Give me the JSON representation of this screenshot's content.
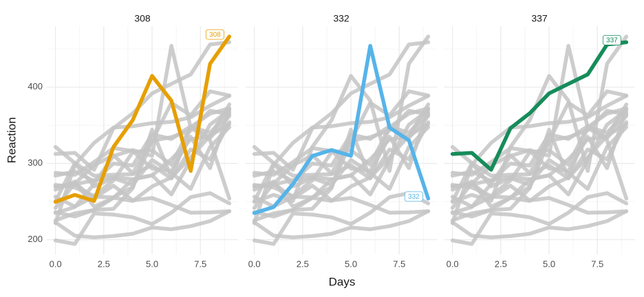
{
  "chart_data": {
    "type": "line",
    "x_label": "Days",
    "y_label": "Reaction",
    "x": [
      0,
      1,
      2,
      3,
      4,
      5,
      6,
      7,
      8,
      9
    ],
    "xlim": [
      -0.45,
      9.45
    ],
    "xticks": [
      {
        "value": 0,
        "label": "0.0"
      },
      2.5,
      {
        "value": 5,
        "label": "5.0"
      },
      7.5
    ],
    "ylim": [
      180.7,
      480
    ],
    "yticks": [
      200,
      300,
      400
    ],
    "grid": true,
    "background": {
      "color": "#c4c4c4",
      "series": [
        {
          "values": [
            222.7339,
            205.2658,
            202.9778,
            204.707,
            207.7161,
            215.9618,
            213.6303,
            217.7272,
            224.2957,
            237.3142
          ]
        },
        {
          "values": [
            199.0539,
            194.3322,
            234.32,
            232.8416,
            229.3074,
            220.4579,
            235.4208,
            255.7511,
            261.0125,
            247.5153
          ]
        },
        {
          "values": [
            321.5426,
            300.4002,
            283.8565,
            285.133,
            285.7973,
            297.5855,
            280.2396,
            318.2613,
            305.3495,
            354.0487
          ]
        },
        {
          "values": [
            287.6079,
            285.0,
            301.8206,
            320.1153,
            316.2773,
            293.3187,
            290.075,
            334.8177,
            293.7469,
            371.5811
          ]
        },
        {
          "values": [
            283.8424,
            289.555,
            276.7693,
            299.8097,
            297.171,
            338.1665,
            332.0265,
            348.8399,
            333.36,
            362.0428
          ]
        },
        {
          "values": [
            265.4731,
            276.2012,
            243.3647,
            254.6723,
            279.0244,
            284.1912,
            305.5248,
            331.5229,
            335.7469,
            377.299
          ]
        },
        {
          "values": [
            241.6083,
            273.9472,
            254.4907,
            270.8021,
            251.4519,
            254.6362,
            245.4523,
            235.311,
            235.7541,
            237.2466
          ]
        },
        {
          "values": [
            236.1032,
            230.3167,
            238.9256,
            254.922,
            250.7103,
            269.7744,
            281.5648,
            308.102,
            336.2806,
            351.6451
          ]
        },
        {
          "values": [
            256.2968,
            243.4543,
            256.2046,
            255.5271,
            268.9165,
            329.7247,
            379.4445,
            362.9184,
            394.4872,
            389.0527
          ]
        },
        {
          "values": [
            250.48,
            300.0577,
            269.8939,
            280.5891,
            271.8274,
            304.6336,
            287.7466,
            266.5955,
            321.5418,
            347.5655
          ]
        },
        {
          "values": [
            221.6771,
            298.1939,
            326.8785,
            346.8555,
            348.7402,
            352.8287,
            354.4266,
            360.4326,
            375.6406,
            388.5417
          ]
        },
        {
          "values": [
            271.9235,
            268.4369,
            257.2424,
            277.6566,
            314.8222,
            317.2135,
            298.1353,
            348.1229,
            340.28,
            366.5131
          ]
        },
        {
          "values": [
            225.264,
            234.5235,
            238.9008,
            240.473,
            267.5373,
            344.1937,
            281.1481,
            347.5855,
            365.163,
            372.2288
          ]
        },
        {
          "values": [
            269.8804,
            272.4428,
            277.8989,
            281.7895,
            279.1705,
            284.512,
            259.2658,
            304.6306,
            350.7807,
            369.4692
          ]
        },
        {
          "values": [
            269.4117,
            273.474,
            297.5968,
            310.6316,
            287.1726,
            329.6076,
            334.4818,
            343.2199,
            369.1417,
            364.1236
          ]
        }
      ]
    },
    "panels": [
      {
        "title": "308",
        "color": "#e69f00",
        "values": [
          249.56,
          258.7047,
          250.8006,
          321.4398,
          356.8519,
          414.6901,
          382.2038,
          290.1486,
          430.5853,
          466.3535
        ]
      },
      {
        "title": "332",
        "color": "#56b4e9",
        "values": [
          234.8606,
          242.8118,
          272.9613,
          309.7688,
          317.4629,
          309.9976,
          454.1619,
          346.8311,
          330.3003,
          253.8644
        ]
      },
      {
        "title": "337",
        "color": "#168c5a",
        "values": [
          312.3666,
          313.8058,
          291.6112,
          346.1222,
          365.7324,
          391.8385,
          404.2601,
          416.6923,
          455.8643,
          458.9167
        ]
      }
    ]
  }
}
